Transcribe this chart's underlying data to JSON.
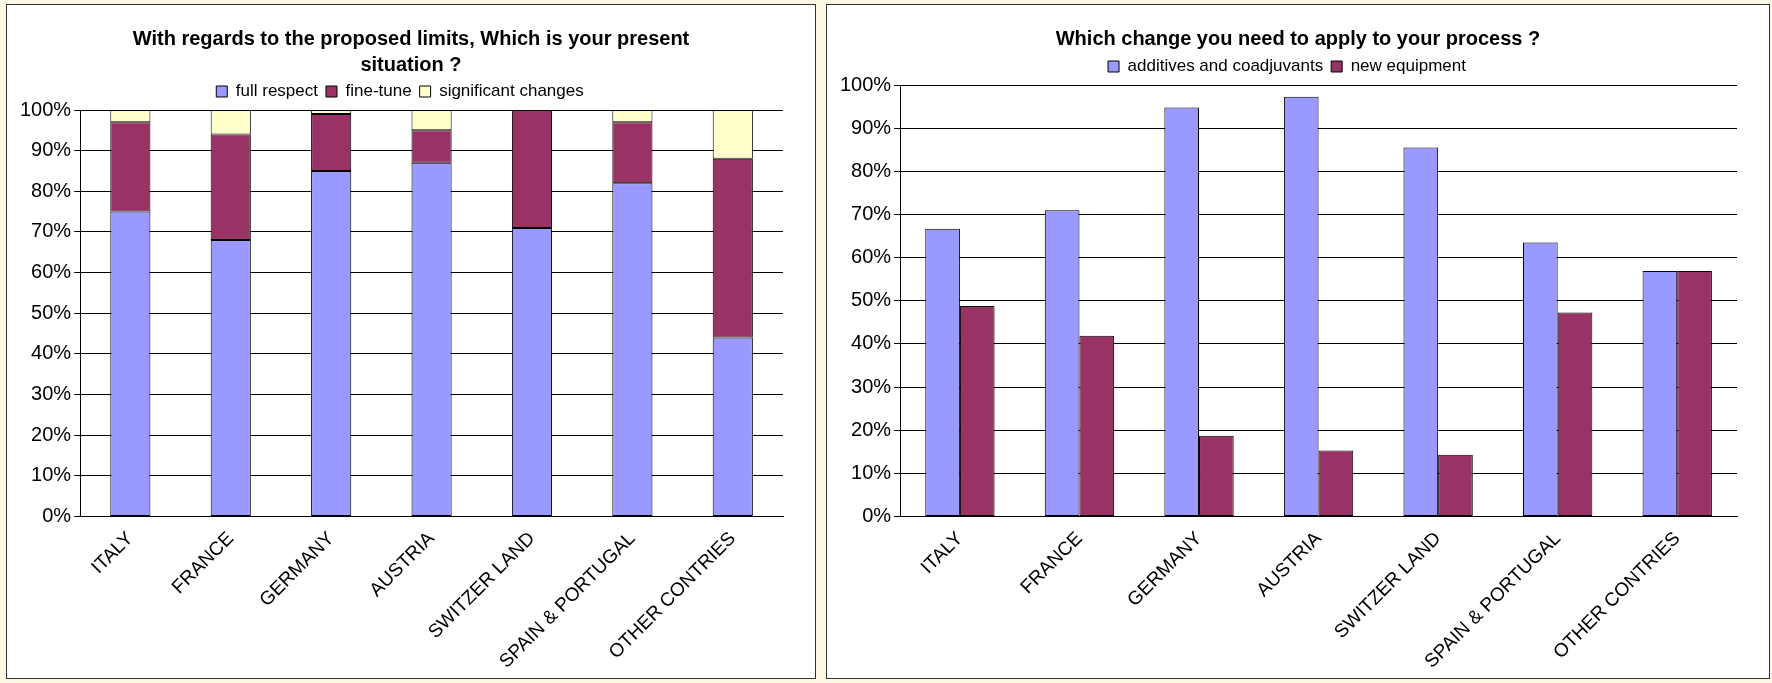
{
  "chart_data": [
    {
      "type": "bar",
      "title": "With regards to the proposed limits, Which is your present situation ?",
      "stacked": true,
      "categories": [
        "ITALY",
        "FRANCE",
        "GERMANY",
        "AUSTRIA",
        "SWITZER LAND",
        "SPAIN & PORTUGAL",
        "OTHER CONTRIES"
      ],
      "series": [
        {
          "name": "full respect",
          "color": "#9999ff",
          "values": [
            75,
            68,
            85,
            87,
            71,
            82,
            44
          ]
        },
        {
          "name": "fine-tune",
          "color": "#993366",
          "values": [
            22,
            26,
            14,
            8,
            29,
            15,
            44
          ]
        },
        {
          "name": "significant changes",
          "color": "#ffffcc",
          "values": [
            3,
            6,
            1,
            5,
            0,
            3,
            12
          ]
        }
      ],
      "ylim": [
        0,
        100
      ],
      "yticks": [
        {
          "value": 0,
          "label": "0%"
        },
        {
          "value": 10,
          "label": "10%"
        },
        {
          "value": 20,
          "label": "20%"
        },
        {
          "value": 30,
          "label": "30%"
        },
        {
          "value": 40,
          "label": "40%"
        },
        {
          "value": 50,
          "label": "50%"
        },
        {
          "value": 60,
          "label": "60%"
        },
        {
          "value": 70,
          "label": "70%"
        },
        {
          "value": 80,
          "label": "80%"
        },
        {
          "value": 90,
          "label": "90%"
        },
        {
          "value": 100,
          "label": "100%"
        }
      ],
      "grid": "y",
      "legend": "top"
    },
    {
      "type": "bar",
      "title": "Which change you need to apply to your process ?",
      "categories": [
        "ITALY",
        "FRANCE",
        "GERMANY",
        "AUSTRIA",
        "SWITZER LAND",
        "SPAIN & PORTUGAL",
        "OTHER CONTRIES"
      ],
      "series": [
        {
          "name": "additives and coadjuvants",
          "color": "#9999ff",
          "values": [
            66.7,
            71,
            94.8,
            97.3,
            85.5,
            63.5,
            56.9
          ]
        },
        {
          "name": "new equipment",
          "color": "#993366",
          "values": [
            48.8,
            41.9,
            18.7,
            15.3,
            14.3,
            47.3,
            56.9
          ]
        }
      ],
      "ylim": [
        0,
        100
      ],
      "yticks": [
        {
          "value": 0,
          "label": "0%"
        },
        {
          "value": 10,
          "label": "10%"
        },
        {
          "value": 20,
          "label": "20%"
        },
        {
          "value": 30,
          "label": "30%"
        },
        {
          "value": 40,
          "label": "40%"
        },
        {
          "value": 50,
          "label": "50%"
        },
        {
          "value": 60,
          "label": "60%"
        },
        {
          "value": 70,
          "label": "70%"
        },
        {
          "value": 80,
          "label": "80%"
        },
        {
          "value": 90,
          "label": "90%"
        },
        {
          "value": 100,
          "label": "100%"
        }
      ],
      "grid": "y",
      "legend": "top"
    }
  ]
}
